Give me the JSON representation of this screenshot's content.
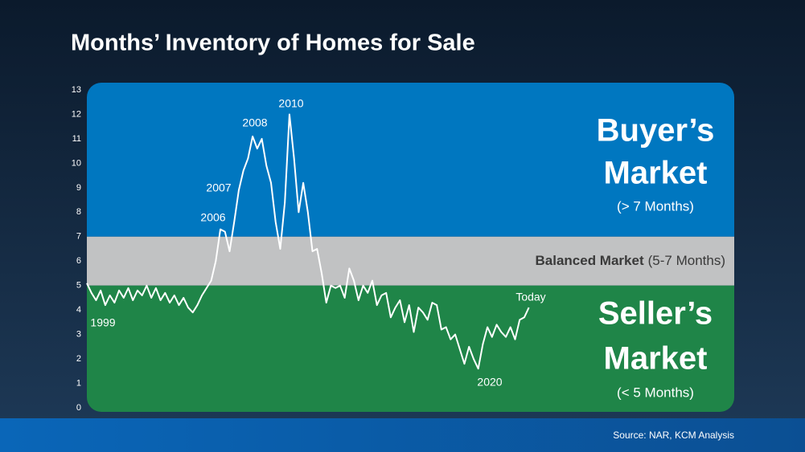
{
  "chart_data": {
    "type": "line",
    "title": "Months’ Inventory of Homes for Sale",
    "source": "Source: NAR, KCM Analysis",
    "ylim": [
      0,
      13
    ],
    "yticks": [
      0,
      1,
      2,
      3,
      4,
      5,
      6,
      7,
      8,
      9,
      10,
      11,
      12,
      13
    ],
    "xlim": [
      1999,
      2034.15
    ],
    "zones": [
      {
        "title": [
          "Buyer’s",
          "Market"
        ],
        "sublabel": "(> 7 Months)",
        "min": 7,
        "color": "#0077c0"
      },
      {
        "title": [
          "Balanced Market"
        ],
        "sublabel": "(5-7 Months)",
        "min": 5,
        "max": 7,
        "color": "#c1c2c3"
      },
      {
        "title": [
          "Seller’s",
          "Market"
        ],
        "sublabel": "(< 5 Months)",
        "max": 5,
        "color": "#1f8548"
      }
    ],
    "annotations": [
      "1999",
      "2006",
      "2007",
      "2008",
      "2010",
      "2020",
      "Today"
    ],
    "x": [
      1999,
      1999.25,
      1999.5,
      1999.75,
      2000,
      2000.25,
      2000.5,
      2000.75,
      2001,
      2001.25,
      2001.5,
      2001.75,
      2002,
      2002.25,
      2002.5,
      2002.75,
      2003,
      2003.25,
      2003.5,
      2003.75,
      2004,
      2004.25,
      2004.5,
      2004.75,
      2005,
      2005.25,
      2005.5,
      2005.75,
      2006,
      2006.25,
      2006.5,
      2006.75,
      2007,
      2007.25,
      2007.5,
      2007.75,
      2008,
      2008.25,
      2008.5,
      2008.75,
      2009,
      2009.25,
      2009.5,
      2009.75,
      2010,
      2010.25,
      2010.5,
      2010.75,
      2011,
      2011.25,
      2011.5,
      2011.75,
      2012,
      2012.25,
      2012.5,
      2012.75,
      2013,
      2013.25,
      2013.5,
      2013.75,
      2014,
      2014.25,
      2014.5,
      2014.75,
      2015,
      2015.25,
      2015.5,
      2015.75,
      2016,
      2016.25,
      2016.5,
      2016.75,
      2017,
      2017.25,
      2017.5,
      2017.75,
      2018,
      2018.25,
      2018.5,
      2018.75,
      2019,
      2019.25,
      2019.5,
      2019.75,
      2020,
      2020.25,
      2020.5,
      2020.75,
      2021,
      2021.25,
      2021.5,
      2021.75,
      2022,
      2022.25,
      2022.5,
      2022.75,
      2023
    ],
    "series": [
      {
        "name": "Months’ Inventory",
        "color": "#ffffff",
        "values": [
          5.1,
          4.7,
          4.4,
          4.8,
          4.2,
          4.6,
          4.3,
          4.8,
          4.5,
          4.9,
          4.4,
          4.8,
          4.6,
          5.0,
          4.5,
          4.9,
          4.4,
          4.7,
          4.3,
          4.6,
          4.2,
          4.5,
          4.1,
          3.9,
          4.2,
          4.6,
          4.9,
          5.2,
          6.0,
          7.3,
          7.2,
          6.4,
          7.6,
          8.9,
          9.7,
          10.2,
          11.1,
          10.6,
          11.0,
          9.9,
          9.2,
          7.6,
          6.5,
          8.4,
          12.0,
          10.2,
          8.0,
          9.2,
          8.0,
          6.4,
          6.5,
          5.5,
          4.3,
          5.0,
          4.9,
          5.0,
          4.5,
          5.7,
          5.2,
          4.4,
          5.0,
          4.7,
          5.2,
          4.2,
          4.6,
          4.7,
          3.7,
          4.1,
          4.4,
          3.5,
          4.2,
          3.1,
          4.1,
          3.9,
          3.6,
          4.3,
          4.2,
          3.2,
          3.3,
          2.8,
          3.0,
          2.4,
          1.8,
          2.5,
          2.0,
          1.6,
          2.6,
          3.3,
          2.9,
          3.4,
          3.1,
          2.9,
          3.3,
          2.8,
          3.6,
          3.7,
          4.1
        ]
      }
    ]
  }
}
